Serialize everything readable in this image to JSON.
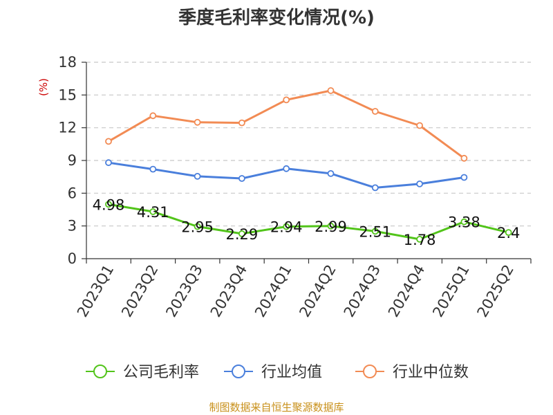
{
  "chart_data": {
    "type": "line",
    "title": "季度毛利率变化情况(%)",
    "ylabel": "(%)",
    "xlabel": "",
    "categories": [
      "2023Q1",
      "2023Q2",
      "2023Q3",
      "2023Q4",
      "2024Q1",
      "2024Q2",
      "2024Q3",
      "2024Q4",
      "2025Q1",
      "2025Q2"
    ],
    "ylim": [
      0,
      18
    ],
    "yticks": [
      0,
      3,
      6,
      9,
      12,
      15,
      18
    ],
    "grid": true,
    "legend_position": "bottom",
    "series": [
      {
        "name": "公司毛利率",
        "color": "#52c41a",
        "values": [
          4.98,
          4.31,
          2.95,
          2.29,
          2.94,
          2.99,
          2.51,
          1.78,
          3.38,
          2.4
        ],
        "data_labels": [
          "4.98",
          "4.31",
          "2.95",
          "2.29",
          "2.94",
          "2.99",
          "2.51",
          "1.78",
          "3.38",
          "2.4"
        ]
      },
      {
        "name": "行业均值",
        "color": "#4a7fdc",
        "values": [
          8.8,
          8.2,
          7.55,
          7.35,
          8.25,
          7.8,
          6.5,
          6.85,
          7.45,
          null
        ]
      },
      {
        "name": "行业中位数",
        "color": "#f28b54",
        "values": [
          10.75,
          13.1,
          12.5,
          12.45,
          14.55,
          15.4,
          13.5,
          12.2,
          9.2,
          null
        ]
      }
    ]
  },
  "footer": {
    "source": "制图数据来自恒生聚源数据库"
  }
}
